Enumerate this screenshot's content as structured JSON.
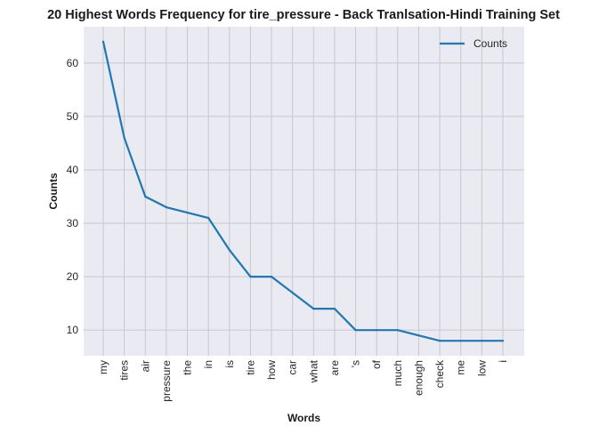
{
  "chart_data": {
    "type": "line",
    "title": "20 Highest Words Frequency for tire_pressure - Back Tranlsation-Hindi Training Set",
    "xlabel": "Words",
    "ylabel": "Counts",
    "categories": [
      "my",
      "tires",
      "air",
      "pressure",
      "the",
      "in",
      "is",
      "tire",
      "how",
      "car",
      "what",
      "are",
      "'s",
      "of",
      "much",
      "enough",
      "check",
      "me",
      "low",
      "i"
    ],
    "series": [
      {
        "name": "Counts",
        "values": [
          64,
          46,
          35,
          33,
          32,
          31,
          25,
          20,
          20,
          17,
          14,
          14,
          10,
          10,
          10,
          9,
          8,
          8,
          8,
          8
        ]
      }
    ],
    "ylim": [
      5.2,
      66.8
    ],
    "yticks": [
      10,
      20,
      30,
      40,
      50,
      60
    ],
    "grid": true,
    "legend_position": "top-right",
    "colors": {
      "line": "#1f77b4",
      "plot_background": "#eaeaf2",
      "grid": "#c8c8c8"
    }
  }
}
